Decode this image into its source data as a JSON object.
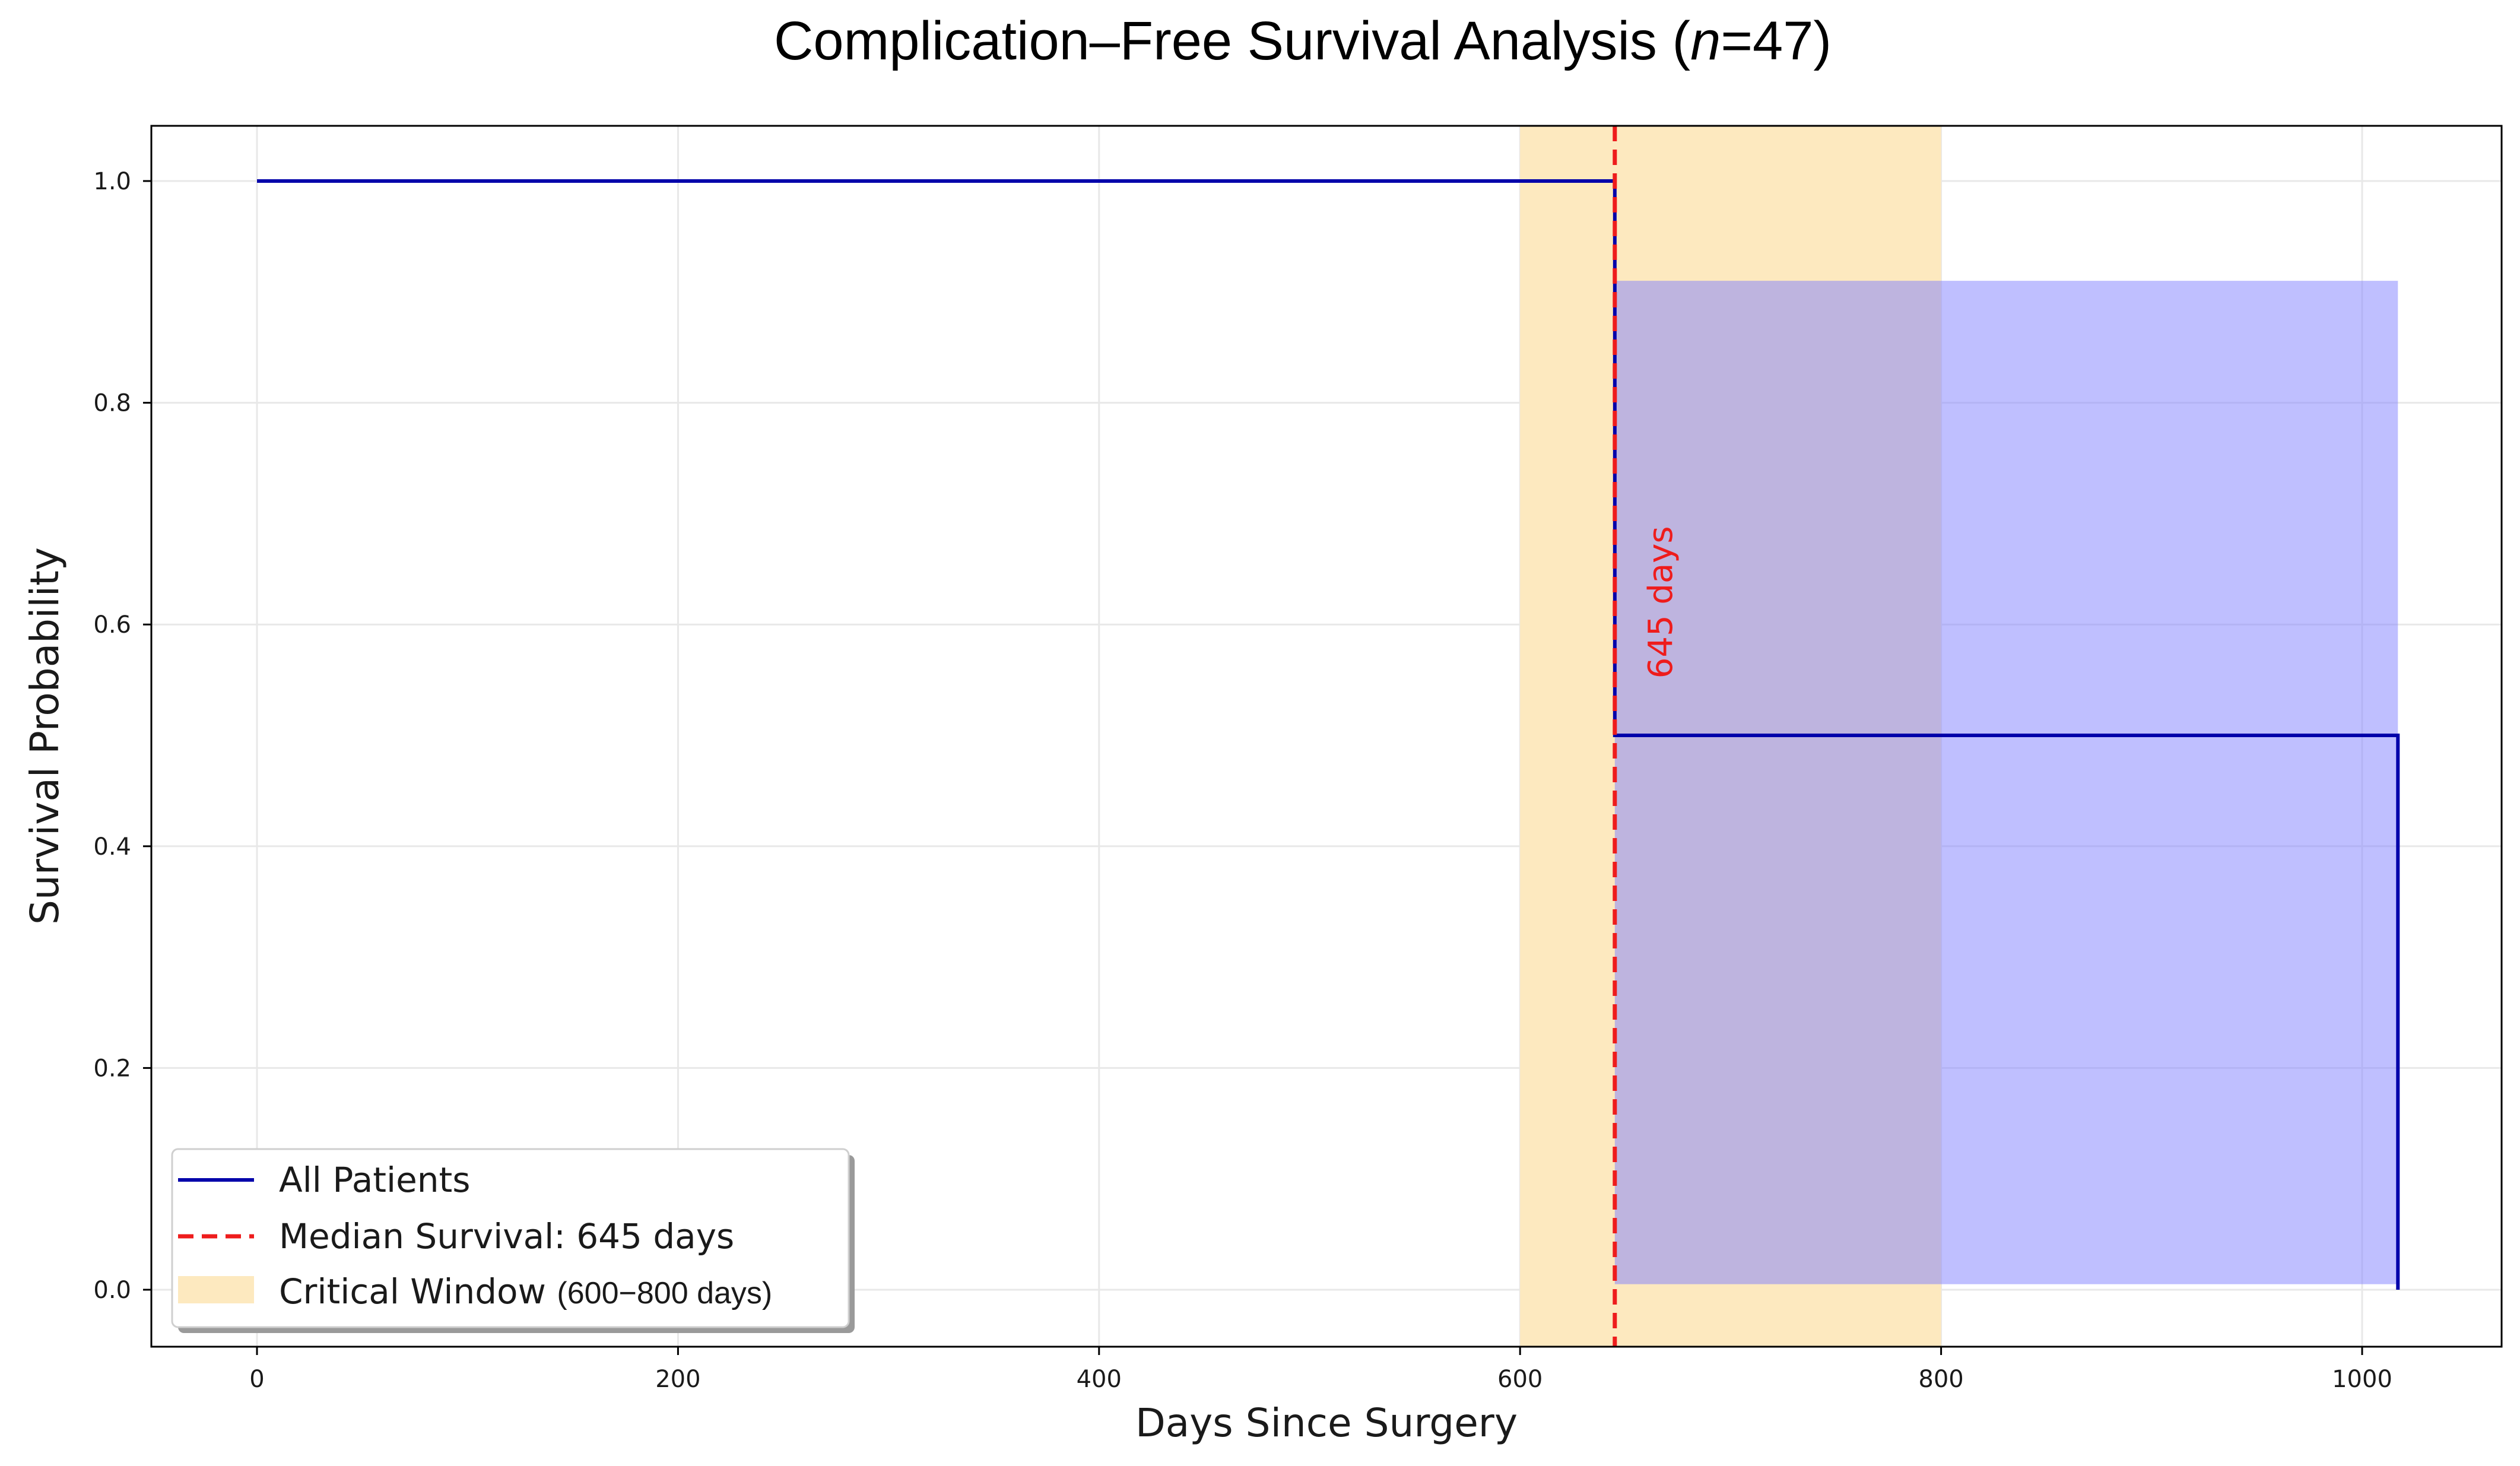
{
  "chart_data": {
    "type": "line",
    "title": "Complication–Free Survival Analysis",
    "title_italic": "n",
    "title_suffix": "=47",
    "xlabel": "Days Since Surgery",
    "ylabel": "Survival Probability",
    "xlim": [
      -50,
      1065
    ],
    "ylim": [
      -0.05,
      1.05
    ],
    "xticks": [
      0,
      200,
      400,
      600,
      800,
      1000
    ],
    "yticks": [
      0.0,
      0.2,
      0.4,
      0.6,
      0.8,
      1.0
    ],
    "xtick_labels": [
      "0",
      "200",
      "400",
      "600",
      "800",
      "1000"
    ],
    "ytick_labels": [
      "0.0",
      "0.2",
      "0.4",
      "0.6",
      "0.8",
      "1.0"
    ],
    "grid": true,
    "legend_position": "lower-left",
    "series": [
      {
        "name": "All Patients",
        "kind": "step",
        "color": "#0000aa",
        "x": [
          0,
          645,
          645,
          1017,
          1017
        ],
        "y": [
          1.0,
          1.0,
          0.5,
          0.5,
          0.0
        ]
      }
    ],
    "confidence_band": {
      "color": "#8080ff",
      "opacity": 0.5,
      "x_start": 645,
      "x_end": 1017,
      "y_low": 0.005,
      "y_high": 0.91
    },
    "critical_window": {
      "color": "#fde9bf",
      "x_start": 600,
      "x_end": 800
    },
    "median": {
      "value": 645,
      "color": "#ee1c1c",
      "annotation": "645 days"
    },
    "legend": {
      "entries": [
        {
          "label": "All Patients",
          "style": "line",
          "color": "#0000aa"
        },
        {
          "label": "Median Survival: 645 days",
          "style": "dashed",
          "color": "#ee1c1c"
        },
        {
          "label": "Critical Window",
          "label_suffix": "(600−800 days)",
          "style": "patch",
          "color": "#fde9bf"
        }
      ]
    }
  }
}
